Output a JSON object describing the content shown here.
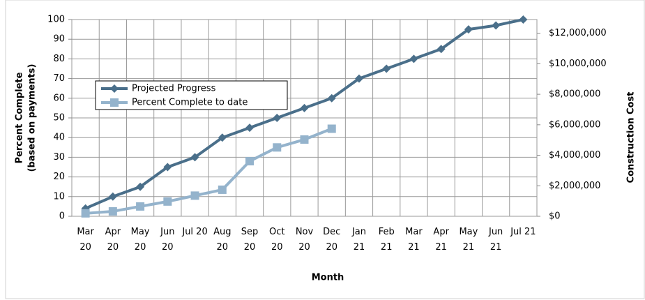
{
  "chart_data": {
    "type": "line",
    "categories": [
      "Mar 20",
      "Apr 20",
      "May 20",
      "Jun 20",
      "Jul 20",
      "Aug 20",
      "Sep 20",
      "Oct 20",
      "Nov 20",
      "Dec 20",
      "Jan 21",
      "Feb 21",
      "Mar 21",
      "Apr 21",
      "May 21",
      "Jun 21",
      "Jul 21"
    ],
    "series": [
      {
        "name": "Projected Progress",
        "color": "#4a6f8a",
        "marker": "diamond",
        "values": [
          4,
          10,
          15,
          25,
          30,
          40,
          45,
          50,
          55,
          60,
          70,
          75,
          80,
          85,
          95,
          97,
          100
        ]
      },
      {
        "name": "Percent Complete to date",
        "color": "#94b3cc",
        "marker": "square",
        "values": [
          1.5,
          2.5,
          5,
          7.5,
          10.5,
          13.5,
          28,
          35,
          39,
          44.5,
          null,
          null,
          null,
          null,
          null,
          null,
          null
        ]
      }
    ],
    "xlabel": "Month",
    "ylabel": [
      "Percent Complete",
      "(based on payments)"
    ],
    "y2label": "Construction Cost",
    "ylim": [
      0,
      100
    ],
    "yticks": [
      0,
      10,
      20,
      30,
      40,
      50,
      60,
      70,
      80,
      90,
      100
    ],
    "y2lim": [
      0,
      12900000
    ],
    "y2ticks": [
      {
        "value": 0,
        "label": "$0"
      },
      {
        "value": 2000000,
        "label": "$2,000,000"
      },
      {
        "value": 4000000,
        "label": "$4,000,000"
      },
      {
        "value": 6000000,
        "label": "$6,000,000"
      },
      {
        "value": 8000000,
        "label": "$8,000,000"
      },
      {
        "value": 10000000,
        "label": "$10,000,000"
      },
      {
        "value": 12000000,
        "label": "$12,000,000"
      }
    ],
    "grid": true,
    "legend": "upper left"
  }
}
